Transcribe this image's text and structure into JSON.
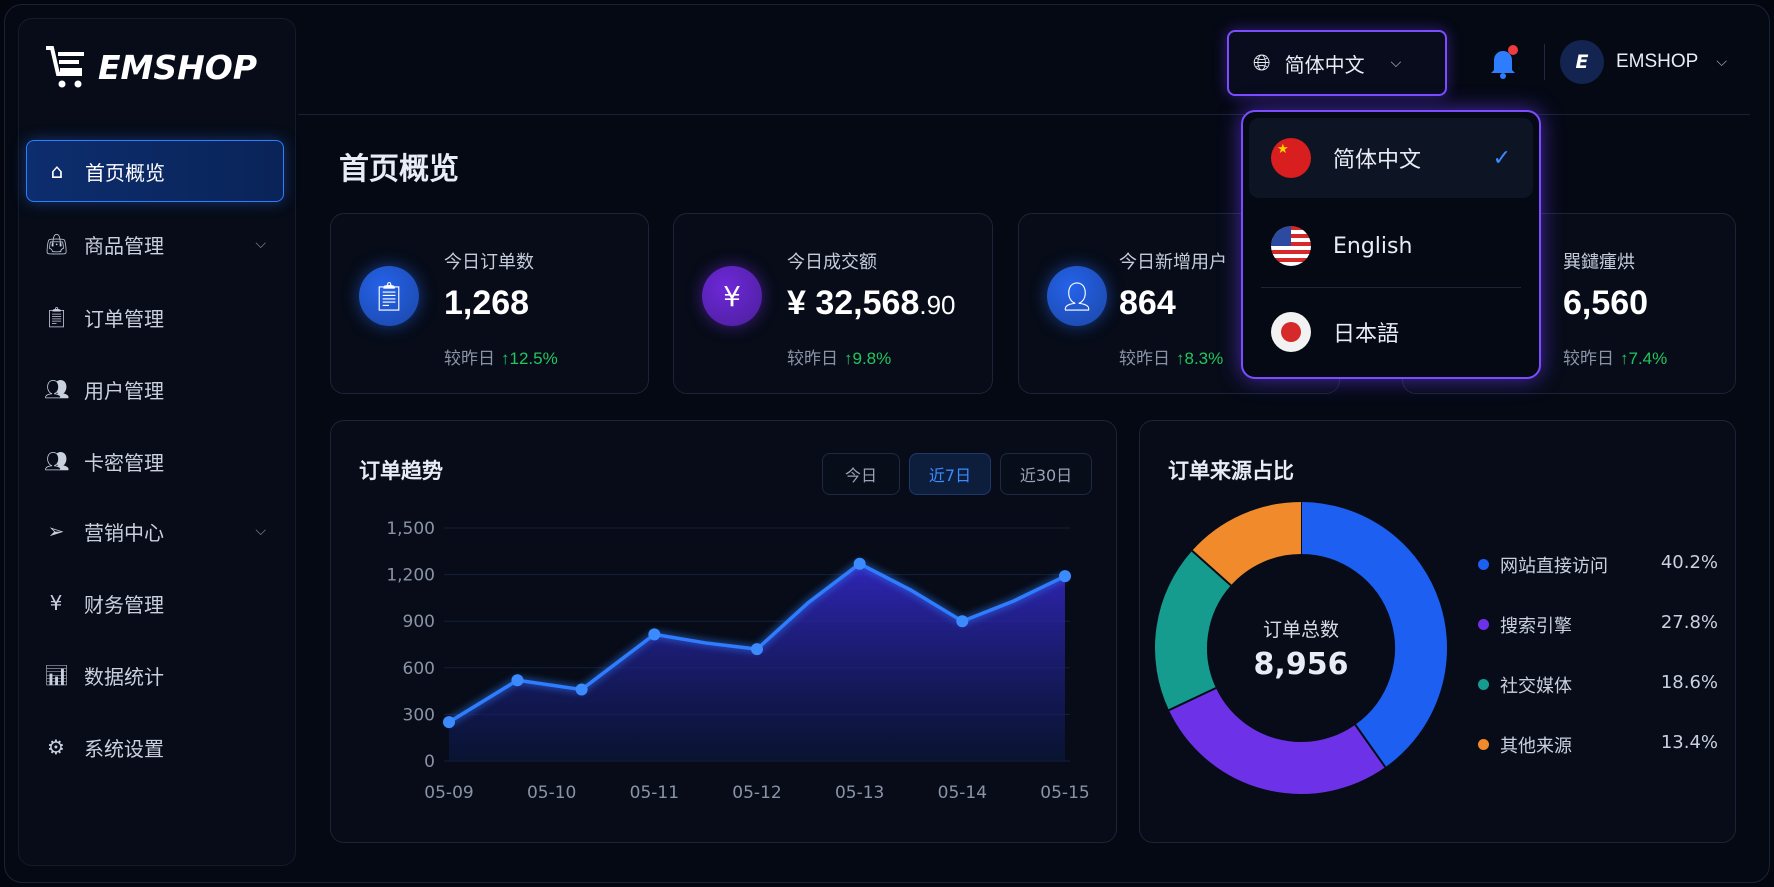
{
  "brand": "EMSHOP",
  "sidebar": {
    "items": [
      {
        "label": "首页概览",
        "icon": "home-icon",
        "active": true
      },
      {
        "label": "商品管理",
        "icon": "bag-icon",
        "chevron": true
      },
      {
        "label": "订单管理",
        "icon": "clipboard-icon"
      },
      {
        "label": "用户管理",
        "icon": "users-icon"
      },
      {
        "label": "卡密管理",
        "icon": "key-users-icon"
      },
      {
        "label": "营销中心",
        "icon": "send-icon",
        "chevron": true
      },
      {
        "label": "财务管理",
        "icon": "yen-shield-icon"
      },
      {
        "label": "数据统计",
        "icon": "bar-chart-icon"
      },
      {
        "label": "系统设置",
        "icon": "gear-icon"
      }
    ]
  },
  "header": {
    "language": "简体中文",
    "user": "EMSHOP",
    "notification_dot": true
  },
  "page_title": "首页概览",
  "stats": [
    {
      "title": "今日订单数",
      "value": "1,268",
      "compare": "较昨日",
      "change": "↑12.5%",
      "color": "#2563eb"
    },
    {
      "title": "今日成交额",
      "value": "¥ 32,568",
      "value_dec": ".90",
      "compare": "较昨日",
      "change": "↑9.8%",
      "color": "#6d28d9"
    },
    {
      "title": "今日新增用户",
      "value": "864",
      "compare": "较昨日",
      "change": "↑8.3%",
      "color": "#2563eb"
    },
    {
      "title": "巽鑓瘇烘",
      "value": "6,560",
      "compare": "较昨日",
      "change": "↑7.4%"
    }
  ],
  "language_menu": {
    "options": [
      {
        "label": "简体中文",
        "flag": "cn",
        "selected": true
      },
      {
        "label": "English",
        "flag": "us"
      },
      {
        "label": "日本語",
        "flag": "jp"
      }
    ]
  },
  "trend": {
    "title": "订单趋势",
    "ranges": [
      "今日",
      "近7日",
      "近30日"
    ],
    "active_range": "近7日"
  },
  "chart_data": [
    {
      "type": "area",
      "title": "订单趋势",
      "ylim": [
        0,
        1500
      ],
      "yticks": [
        0,
        300,
        600,
        900,
        1200,
        1500
      ],
      "xticks": [
        "05-09",
        "05-10",
        "05-11",
        "05-12",
        "05-13",
        "05-14",
        "05-15"
      ],
      "grid": true,
      "points": [
        {
          "x": "05-09 00:00",
          "y": 250,
          "marker": true
        },
        {
          "x": "05-09 16:00",
          "y": 520,
          "marker": true
        },
        {
          "x": "05-10 07:00",
          "y": 460,
          "marker": true
        },
        {
          "x": "05-11 00:00",
          "y": 815,
          "marker": true
        },
        {
          "x": "05-11 12:00",
          "y": 760
        },
        {
          "x": "05-12 00:00",
          "y": 720,
          "marker": true
        },
        {
          "x": "05-12 12:00",
          "y": 1020
        },
        {
          "x": "05-13 00:00",
          "y": 1270,
          "marker": true
        },
        {
          "x": "05-13 12:00",
          "y": 1100
        },
        {
          "x": "05-14 00:00",
          "y": 900,
          "marker": true
        },
        {
          "x": "05-14 12:00",
          "y": 1030
        },
        {
          "x": "05-15 00:00",
          "y": 1190,
          "marker": true
        }
      ],
      "color": "#2f7dff"
    },
    {
      "type": "pie",
      "title": "订单来源占比",
      "center_label": "订单总数",
      "center_value": "8,956",
      "slices": [
        {
          "label": "网站直接访问",
          "value": 40.2,
          "pct": "40.2%",
          "color": "#1d5ff0"
        },
        {
          "label": "搜索引擎",
          "value": 27.8,
          "pct": "27.8%",
          "color": "#6d32e8"
        },
        {
          "label": "社交媒体",
          "value": 18.6,
          "pct": "18.6%",
          "color": "#169c8e"
        },
        {
          "label": "其他来源",
          "value": 13.4,
          "pct": "13.4%",
          "color": "#f08a2a"
        }
      ],
      "legend": "right"
    }
  ]
}
